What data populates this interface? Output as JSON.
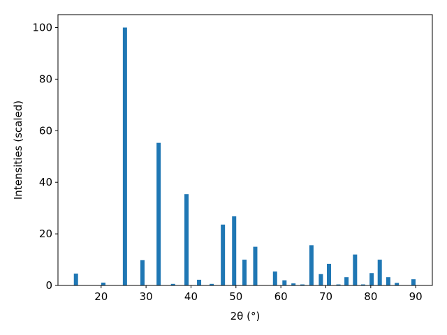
{
  "chart_data": {
    "type": "bar",
    "x_label": "2θ (°)",
    "y_label": "Intensities (scaled)",
    "x": [
      14.4,
      20.5,
      25.3,
      29.2,
      32.8,
      36.0,
      39.0,
      41.8,
      44.6,
      47.1,
      49.6,
      51.9,
      54.3,
      58.7,
      60.8,
      62.8,
      64.8,
      66.8,
      68.9,
      70.7,
      72.8,
      74.6,
      76.5,
      78.3,
      80.2,
      82.0,
      83.9,
      85.8,
      89.5
    ],
    "values": [
      4.6,
      1.1,
      100,
      9.8,
      55.3,
      0.6,
      35.4,
      2.2,
      0.6,
      23.6,
      26.8,
      10.0,
      15.0,
      5.4,
      2.0,
      0.8,
      0.4,
      15.6,
      4.4,
      8.4,
      0.4,
      3.2,
      12.0,
      0.4,
      4.8,
      10.0,
      3.2,
      1.0,
      2.4
    ],
    "color": "#1f77b4",
    "xlim": [
      10.4,
      93.7
    ],
    "xticks": [
      20,
      30,
      40,
      50,
      60,
      70,
      80,
      90
    ],
    "ylim": [
      0,
      105
    ],
    "yticks": [
      0,
      20,
      40,
      60,
      80,
      100
    ]
  }
}
